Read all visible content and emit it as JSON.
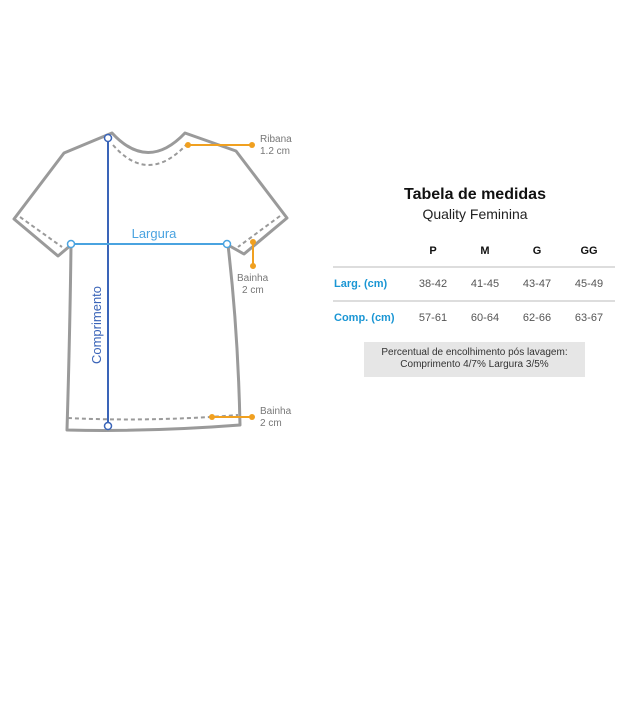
{
  "diagram": {
    "width_label": "Largura",
    "length_label": "Comprimento",
    "ribana": {
      "name": "Ribana",
      "size": "1.2 cm"
    },
    "sleeve_hem": {
      "name": "Bainha",
      "size": "2 cm"
    },
    "bottom_hem": {
      "name": "Bainha",
      "size": "2 cm"
    },
    "colors": {
      "outline": "#9a9a9a",
      "width_line": "#4aa3e0",
      "length_line": "#3a64b8",
      "annotation": "#f0a020"
    }
  },
  "table": {
    "title": "Tabela de medidas",
    "subtitle": "Quality Feminina",
    "sizes": [
      "P",
      "M",
      "G",
      "GG"
    ],
    "rows": [
      {
        "label": "Larg. (cm)",
        "values": [
          "38-42",
          "41-45",
          "43-47",
          "45-49"
        ]
      },
      {
        "label": "Comp. (cm)",
        "values": [
          "57-61",
          "60-64",
          "62-66",
          "63-67"
        ]
      }
    ],
    "note_line1": "Percentual de encolhimento pós lavagem:",
    "note_line2": "Comprimento 4/7% Largura 3/5%"
  }
}
